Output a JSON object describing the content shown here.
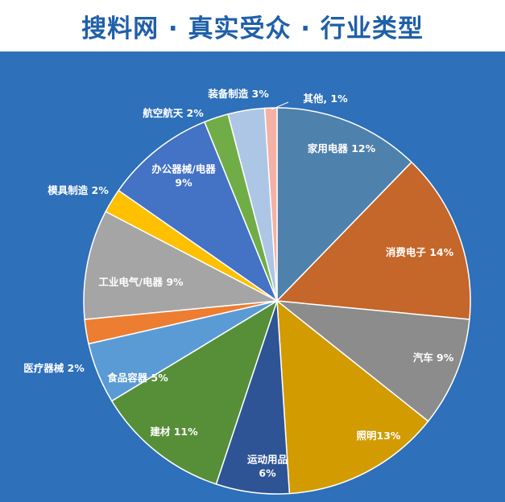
{
  "title": "搜料网 · 真实受众 · 行业类型",
  "colors": {
    "background": "#2e70b9",
    "title": "#1f5fa8",
    "label_inside": "#ffffff",
    "label_outside": "#ffffff",
    "slice_border": "#ffffff"
  },
  "chart_data": {
    "type": "pie",
    "title": "",
    "start": "12 o'clock",
    "direction": "clockwise",
    "categories": [
      "家用电器",
      "消费电子",
      "汽车",
      "照明",
      "运动用品",
      "建材",
      "食品容器",
      "医疗器械",
      "工业电气/电器",
      "模具制造",
      "办公器械/电器",
      "航空航天",
      "装备制造",
      "其他"
    ],
    "values": [
      12,
      14,
      9,
      13,
      6,
      11,
      5,
      2,
      9,
      2,
      9,
      2,
      3,
      1
    ],
    "labels": [
      [
        "家用电器 12%"
      ],
      [
        "消费电子 14%"
      ],
      [
        "汽车 9%"
      ],
      [
        "照明13%"
      ],
      [
        "运动用品",
        "6%"
      ],
      [
        "建材 11%"
      ],
      [
        "食品容器 5%"
      ],
      [
        "医疗器械 2%"
      ],
      [
        "工业电气/电器 9%"
      ],
      [
        "模具制造 2%"
      ],
      [
        "办公器械/电器",
        "9%"
      ],
      [
        "航空航天 2%"
      ],
      [
        "装备制造 3%"
      ],
      [
        "其他, 1%"
      ]
    ],
    "colors": [
      "#4f81ad",
      "#c5662a",
      "#8c8c8c",
      "#d29b00",
      "#2e5496",
      "#568f38",
      "#5b9bd5",
      "#ed7d31",
      "#a5a5a5",
      "#ffc000",
      "#4472c4",
      "#70ad47",
      "#adc6e5",
      "#f4b1a4"
    ]
  }
}
